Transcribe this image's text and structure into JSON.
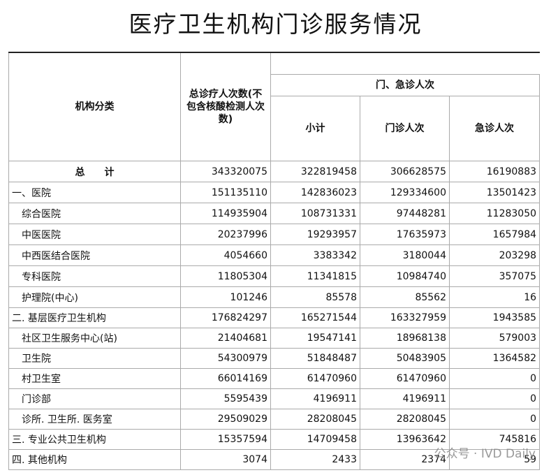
{
  "title": "医疗卫生机构门诊服务情况",
  "table": {
    "header": {
      "category": "机构分类",
      "total": "总诊疗人次数(不包含核酸检测人次数)",
      "group": "门、急诊人次",
      "sub": [
        "小计",
        "门诊人次",
        "急诊人次"
      ]
    },
    "total": [
      "总　　计",
      343320075,
      322819458,
      306628575,
      16190883
    ],
    "groups": [
      {
        "row": [
          "一、医院",
          151135110,
          142836023,
          129334600,
          13501423
        ],
        "items": [
          [
            "综合医院",
            114935904,
            108731331,
            97448281,
            11283050
          ],
          [
            "中医医院",
            20237996,
            19293957,
            17635973,
            1657984
          ],
          [
            "中西医结合医院",
            4054660,
            3383342,
            3180044,
            203298
          ],
          [
            "专科医院",
            11805304,
            11341815,
            10984740,
            357075
          ],
          [
            "护理院(中心)",
            101246,
            85578,
            85562,
            16
          ]
        ]
      },
      {
        "row": [
          "二. 基层医疗卫生机构",
          176824297,
          165271544,
          163327959,
          1943585
        ],
        "items": [
          [
            "社区卫生服务中心(站)",
            21404681,
            19547141,
            18968138,
            579003
          ],
          [
            "卫生院",
            54300979,
            51848487,
            50483905,
            1364582
          ],
          [
            "村卫生室",
            66014169,
            61470960,
            61470960,
            0
          ],
          [
            "门诊部",
            5595439,
            4196911,
            4196911,
            0
          ],
          [
            "诊所. 卫生所. 医务室",
            29509029,
            28208045,
            28208045,
            0
          ]
        ]
      },
      {
        "row": [
          "三. 专业公共卫生机构",
          15357594,
          14709458,
          13963642,
          745816
        ],
        "items": []
      },
      {
        "row": [
          "四. 其他机构",
          3074,
          2433,
          2374,
          59
        ],
        "items": []
      }
    ]
  },
  "watermark": "公众号 · IVD Daily"
}
